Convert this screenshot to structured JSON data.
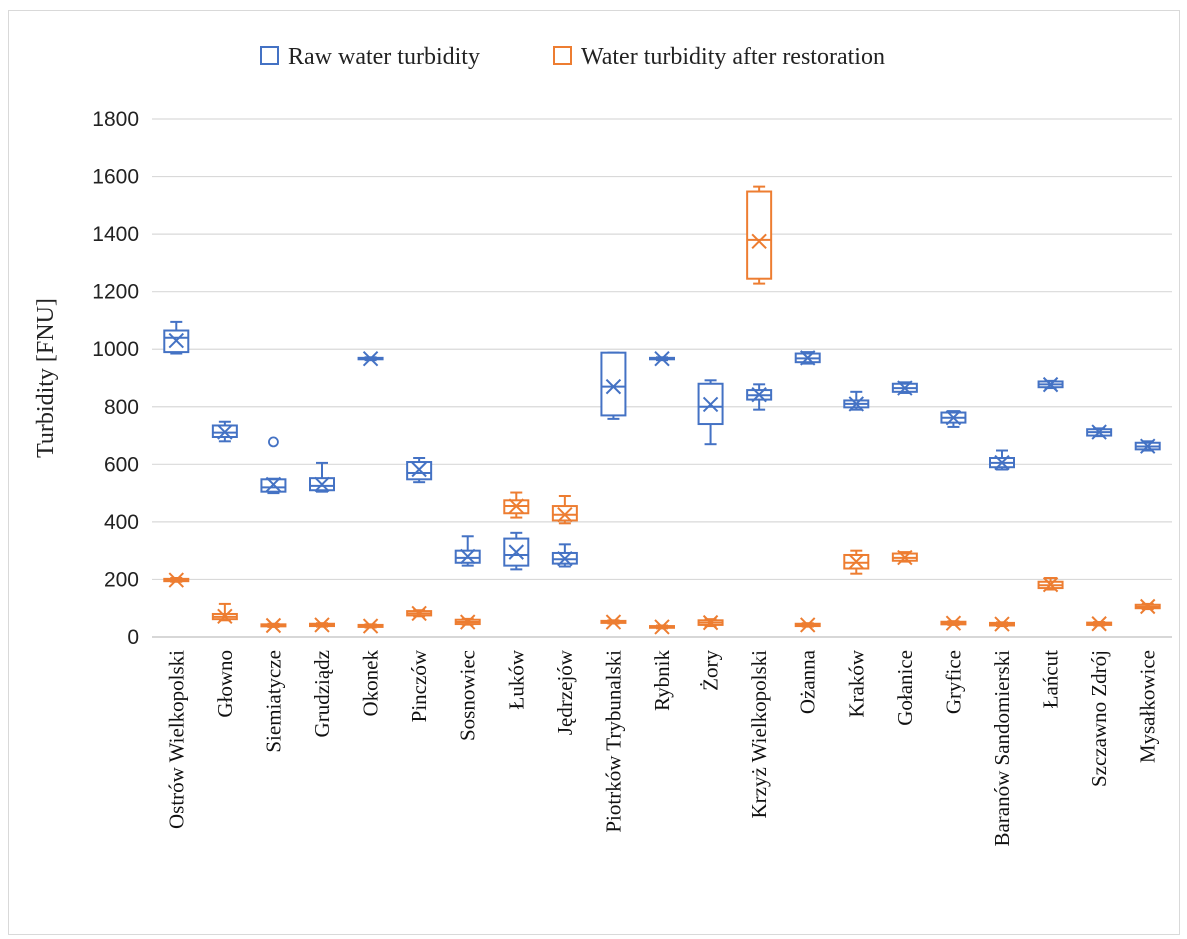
{
  "chart_data": {
    "type": "box",
    "ylabel": "Turbidity [FNU]",
    "ylim": [
      0,
      1800
    ],
    "ytick_step": 200,
    "grid": true,
    "legend_position": "top-center",
    "categories": [
      "Ostrów Wielkopolski",
      "Głowno",
      "Siemiatycze",
      "Grudziądz",
      "Okonek",
      "Pinczów",
      "Sosnowiec",
      "Łuków",
      "Jędrzejów",
      "Piotrków Trybunalski",
      "Rybnik",
      "Żory",
      "Krzyż Wielkopolski",
      "Ożanna",
      "Kraków",
      "Gołanice",
      "Gryfice",
      "Baranów Sandomierski",
      "Łańcut",
      "Szczawno Zdrój",
      "Mysałkowice"
    ],
    "series": [
      {
        "name": "Raw water turbidity",
        "color": "#4472c4",
        "boxes": [
          {
            "min": 985,
            "q1": 990,
            "median": 1040,
            "q3": 1065,
            "max": 1095,
            "mean": 1030
          },
          {
            "min": 680,
            "q1": 695,
            "median": 710,
            "q3": 735,
            "max": 748,
            "mean": 712
          },
          {
            "min": 500,
            "q1": 505,
            "median": 520,
            "q3": 548,
            "max": 550,
            "mean": 530,
            "outliers": [
              678
            ]
          },
          {
            "min": 505,
            "q1": 510,
            "median": 525,
            "q3": 552,
            "max": 605,
            "mean": 530
          },
          {
            "min": 962,
            "q1": 965,
            "median": 968,
            "q3": 970,
            "max": 972,
            "mean": 967
          },
          {
            "min": 538,
            "q1": 548,
            "median": 570,
            "q3": 608,
            "max": 622,
            "mean": 582
          },
          {
            "min": 248,
            "q1": 258,
            "median": 275,
            "q3": 300,
            "max": 350,
            "mean": 280
          },
          {
            "min": 235,
            "q1": 248,
            "median": 285,
            "q3": 342,
            "max": 362,
            "mean": 295
          },
          {
            "min": 245,
            "q1": 255,
            "median": 270,
            "q3": 292,
            "max": 322,
            "mean": 272
          },
          {
            "min": 758,
            "q1": 770,
            "median": 870,
            "q3": 988,
            "max": 988,
            "mean": 870
          },
          {
            "min": 962,
            "q1": 965,
            "median": 968,
            "q3": 970,
            "max": 972,
            "mean": 967
          },
          {
            "min": 670,
            "q1": 740,
            "median": 800,
            "q3": 880,
            "max": 892,
            "mean": 808
          },
          {
            "min": 790,
            "q1": 825,
            "median": 840,
            "q3": 858,
            "max": 878,
            "mean": 842
          },
          {
            "min": 950,
            "q1": 955,
            "median": 968,
            "q3": 985,
            "max": 990,
            "mean": 970
          },
          {
            "min": 790,
            "q1": 798,
            "median": 810,
            "q3": 822,
            "max": 852,
            "mean": 810
          },
          {
            "min": 848,
            "q1": 852,
            "median": 865,
            "q3": 880,
            "max": 885,
            "mean": 865
          },
          {
            "min": 730,
            "q1": 745,
            "median": 762,
            "q3": 780,
            "max": 785,
            "mean": 762
          },
          {
            "min": 582,
            "q1": 590,
            "median": 605,
            "q3": 622,
            "max": 648,
            "mean": 606
          },
          {
            "min": 865,
            "q1": 868,
            "median": 878,
            "q3": 888,
            "max": 890,
            "mean": 877
          },
          {
            "min": 698,
            "q1": 700,
            "median": 712,
            "q3": 722,
            "max": 725,
            "mean": 712
          },
          {
            "min": 648,
            "q1": 652,
            "median": 662,
            "q3": 675,
            "max": 680,
            "mean": 663
          }
        ]
      },
      {
        "name": "Water turbidity after restoration",
        "color": "#ed7d31",
        "boxes": [
          {
            "min": 192,
            "q1": 194,
            "median": 198,
            "q3": 202,
            "max": 205,
            "mean": 198
          },
          {
            "min": 58,
            "q1": 62,
            "median": 70,
            "q3": 80,
            "max": 115,
            "mean": 72
          },
          {
            "min": 35,
            "q1": 37,
            "median": 40,
            "q3": 44,
            "max": 46,
            "mean": 40
          },
          {
            "min": 36,
            "q1": 38,
            "median": 42,
            "q3": 46,
            "max": 48,
            "mean": 42
          },
          {
            "min": 33,
            "q1": 35,
            "median": 38,
            "q3": 42,
            "max": 44,
            "mean": 38
          },
          {
            "min": 72,
            "q1": 75,
            "median": 82,
            "q3": 90,
            "max": 93,
            "mean": 82
          },
          {
            "min": 43,
            "q1": 45,
            "median": 52,
            "q3": 60,
            "max": 63,
            "mean": 52
          },
          {
            "min": 415,
            "q1": 430,
            "median": 455,
            "q3": 475,
            "max": 502,
            "mean": 455
          },
          {
            "min": 395,
            "q1": 405,
            "median": 425,
            "q3": 455,
            "max": 490,
            "mean": 425
          },
          {
            "min": 47,
            "q1": 49,
            "median": 52,
            "q3": 56,
            "max": 58,
            "mean": 52
          },
          {
            "min": 30,
            "q1": 32,
            "median": 35,
            "q3": 38,
            "max": 40,
            "mean": 35
          },
          {
            "min": 38,
            "q1": 42,
            "median": 50,
            "q3": 58,
            "max": 62,
            "mean": 50
          },
          {
            "min": 1228,
            "q1": 1245,
            "median": 1380,
            "q3": 1548,
            "max": 1565,
            "mean": 1375
          },
          {
            "min": 36,
            "q1": 38,
            "median": 42,
            "q3": 46,
            "max": 48,
            "mean": 42
          },
          {
            "min": 220,
            "q1": 238,
            "median": 258,
            "q3": 285,
            "max": 300,
            "mean": 262
          },
          {
            "min": 262,
            "q1": 265,
            "median": 275,
            "q3": 290,
            "max": 295,
            "mean": 276
          },
          {
            "min": 42,
            "q1": 44,
            "median": 48,
            "q3": 53,
            "max": 55,
            "mean": 48
          },
          {
            "min": 38,
            "q1": 40,
            "median": 45,
            "q3": 49,
            "max": 51,
            "mean": 45
          },
          {
            "min": 165,
            "q1": 170,
            "median": 180,
            "q3": 192,
            "max": 205,
            "mean": 182
          },
          {
            "min": 40,
            "q1": 42,
            "median": 46,
            "q3": 50,
            "max": 52,
            "mean": 46
          },
          {
            "min": 97,
            "q1": 100,
            "median": 105,
            "q3": 112,
            "max": 115,
            "mean": 106
          }
        ]
      }
    ]
  }
}
